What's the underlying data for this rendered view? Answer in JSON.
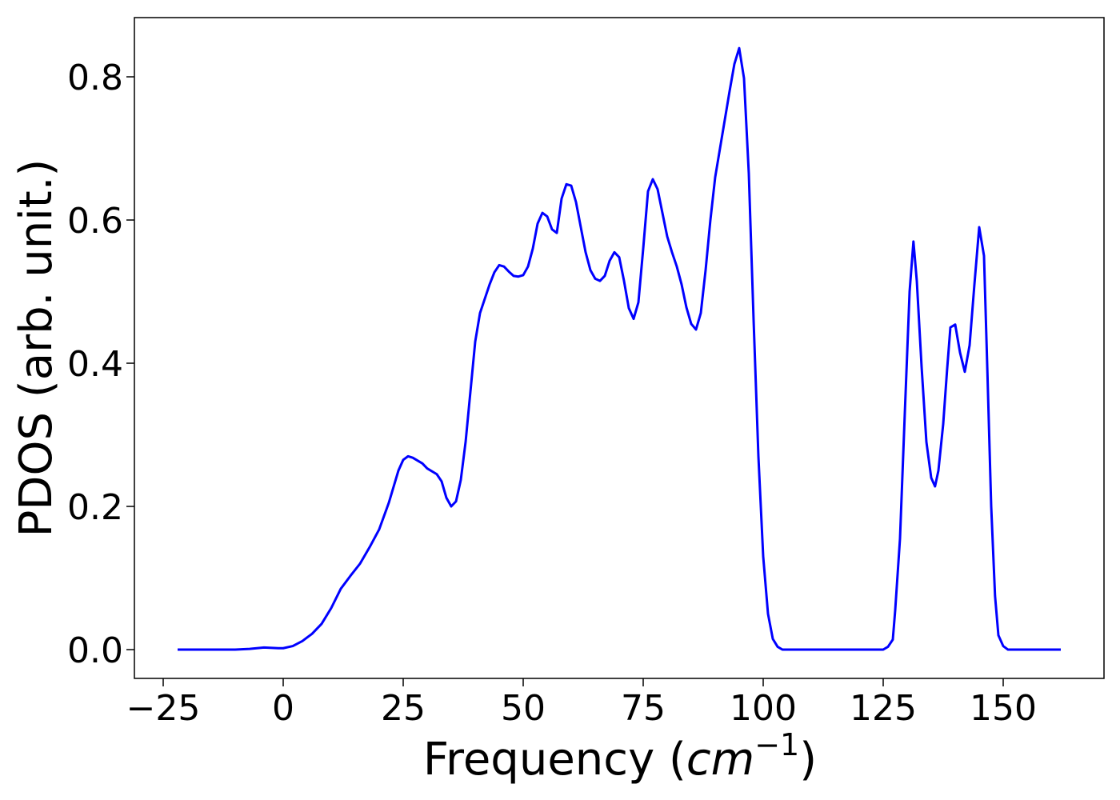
{
  "chart_data": {
    "type": "line",
    "xlabel": {
      "text": "Frequency (",
      "unit": "cm",
      "exponent": "−1",
      "close": ")"
    },
    "ylabel": "PDOS (arb. unit.)",
    "xlim": [
      -31,
      171
    ],
    "ylim": [
      -0.0402,
      0.8827
    ],
    "xticks": [
      {
        "value": -25,
        "label": "−25"
      },
      0,
      25,
      50,
      75,
      100,
      125,
      150
    ],
    "yticks": [
      {
        "value": 0,
        "label": "0.0"
      },
      0.2,
      0.4,
      0.6,
      0.8
    ],
    "grid": false,
    "x": [
      -22,
      -10,
      -7,
      -4,
      -1,
      0,
      2,
      4,
      6,
      8,
      10,
      12,
      14,
      16,
      18,
      20,
      22,
      24,
      25,
      26,
      27,
      29,
      30,
      32,
      33,
      34,
      35,
      36,
      37,
      38,
      39,
      40,
      41,
      43,
      44,
      45,
      46,
      47,
      48,
      49,
      50,
      51,
      52,
      53,
      54,
      55,
      56,
      57,
      58,
      59,
      60,
      61,
      62,
      63,
      64,
      65,
      66,
      67,
      68,
      69,
      70,
      71,
      72,
      73,
      74,
      75,
      76,
      77,
      78,
      79,
      80,
      81,
      82,
      83,
      84,
      85,
      86,
      87,
      88,
      89,
      90,
      91,
      92,
      93,
      94,
      95,
      96,
      97,
      98,
      99,
      100,
      101,
      102,
      103,
      104,
      125,
      126,
      127,
      127.5,
      128.5,
      129.5,
      130.5,
      131.3,
      132,
      133,
      134,
      135,
      135.8,
      136.5,
      137.5,
      138.3,
      139,
      140,
      141,
      142,
      143,
      144,
      145,
      146,
      146.7,
      147.5,
      148.3,
      149,
      150,
      151,
      162
    ],
    "series": [
      {
        "name": "PDOS",
        "color": "#0000ff",
        "values": [
          0,
          0,
          0.001,
          0.003,
          0.002,
          0.002,
          0.005,
          0.012,
          0.022,
          0.036,
          0.058,
          0.085,
          0.103,
          0.12,
          0.143,
          0.168,
          0.205,
          0.25,
          0.265,
          0.27,
          0.268,
          0.26,
          0.253,
          0.245,
          0.235,
          0.212,
          0.2,
          0.207,
          0.237,
          0.29,
          0.36,
          0.43,
          0.47,
          0.51,
          0.527,
          0.537,
          0.535,
          0.528,
          0.522,
          0.521,
          0.523,
          0.535,
          0.56,
          0.595,
          0.61,
          0.605,
          0.587,
          0.582,
          0.63,
          0.65,
          0.648,
          0.625,
          0.59,
          0.555,
          0.53,
          0.518,
          0.515,
          0.522,
          0.543,
          0.555,
          0.548,
          0.515,
          0.477,
          0.462,
          0.485,
          0.56,
          0.64,
          0.657,
          0.643,
          0.61,
          0.577,
          0.555,
          0.535,
          0.51,
          0.478,
          0.455,
          0.447,
          0.47,
          0.53,
          0.6,
          0.66,
          0.7,
          0.74,
          0.78,
          0.818,
          0.84,
          0.798,
          0.665,
          0.46,
          0.27,
          0.13,
          0.05,
          0.015,
          0.004,
          0,
          0,
          0.004,
          0.014,
          0.055,
          0.155,
          0.33,
          0.5,
          0.57,
          0.515,
          0.395,
          0.29,
          0.24,
          0.228,
          0.25,
          0.315,
          0.39,
          0.45,
          0.454,
          0.415,
          0.388,
          0.425,
          0.51,
          0.59,
          0.55,
          0.39,
          0.2,
          0.075,
          0.02,
          0.005,
          0,
          0
        ]
      }
    ]
  }
}
